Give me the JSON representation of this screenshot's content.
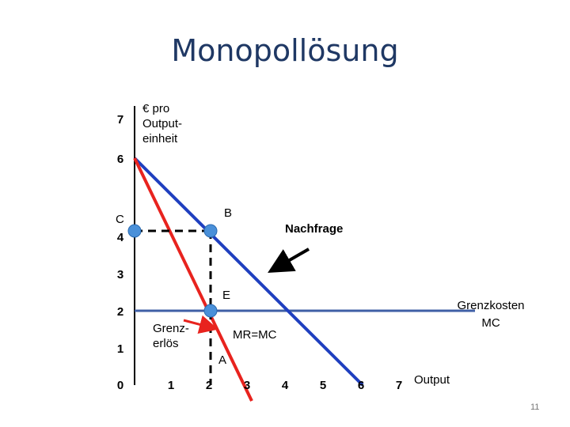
{
  "slide": {
    "title": "Monopollösung",
    "page_number": "11"
  },
  "chart_data": {
    "type": "line",
    "title": "Monopollösung",
    "ylabel_lines": [
      "€ pro",
      "Output-",
      "einheit"
    ],
    "xlabel": "Output",
    "xlim": [
      0,
      7
    ],
    "ylim": [
      0,
      7
    ],
    "x_ticks": [
      "0",
      "1",
      "2",
      "3",
      "4",
      "5",
      "6",
      "7"
    ],
    "y_ticks": [
      "1",
      "2",
      "3",
      "4",
      "6",
      "7"
    ],
    "series": [
      {
        "name": "Nachfrage",
        "color": "#1f3fbf",
        "points": [
          [
            0,
            6
          ],
          [
            6,
            0
          ]
        ]
      },
      {
        "name_lines": [
          "Grenz-",
          "erlös"
        ],
        "color": "#e8231e",
        "points": [
          [
            0,
            6
          ],
          [
            3,
            0
          ]
        ]
      },
      {
        "name_lines": [
          "Grenzkosten",
          "MC"
        ],
        "color": "#3f5fa6",
        "points": [
          [
            0,
            2
          ],
          [
            7,
            2
          ]
        ]
      }
    ],
    "points": [
      {
        "label": "B",
        "x": 2,
        "y": 4
      },
      {
        "label": "C",
        "x": 0,
        "y": 4
      },
      {
        "label": "E",
        "x": 2,
        "y": 2
      },
      {
        "label": "A",
        "x": 2,
        "y": 0
      }
    ],
    "annotations": {
      "mr_mc": "MR=MC",
      "c_tick": "4"
    },
    "point_color": "#4a90d9"
  }
}
